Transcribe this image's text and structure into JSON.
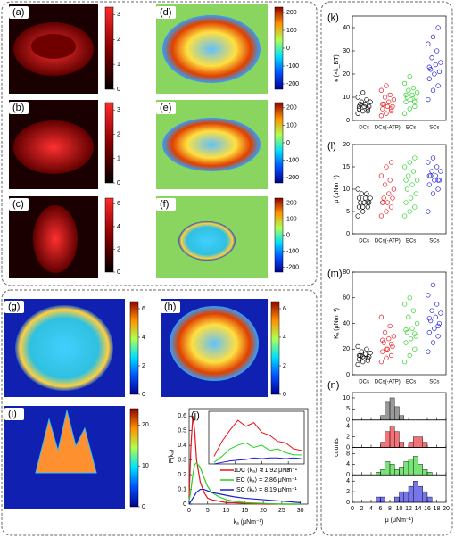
{
  "image_panels": [
    {
      "label": "(a)",
      "clim": [
        0,
        3.3
      ],
      "colorbar_ticks": [
        0,
        1,
        2,
        3
      ]
    },
    {
      "label": "(b)",
      "clim": [
        0,
        3.3
      ],
      "colorbar_ticks": [
        0,
        1,
        2,
        3
      ]
    },
    {
      "label": "(c)",
      "clim": [
        0,
        6.5
      ],
      "colorbar_ticks": [
        0,
        2,
        4,
        6
      ]
    },
    {
      "label": "(d)",
      "clim": [
        -230,
        230
      ],
      "colorbar_ticks": [
        -200,
        -100,
        0,
        100,
        200
      ]
    },
    {
      "label": "(e)",
      "clim": [
        -230,
        230
      ],
      "colorbar_ticks": [
        -200,
        -100,
        0,
        100,
        200
      ]
    },
    {
      "label": "(f)",
      "clim": [
        -230,
        230
      ],
      "colorbar_ticks": [
        -200,
        -100,
        0,
        100,
        200
      ]
    },
    {
      "label": "(g)",
      "clim": [
        0,
        6.5
      ],
      "colorbar_ticks": [
        0,
        2,
        4,
        6
      ]
    },
    {
      "label": "(h)",
      "clim": [
        0,
        6.5
      ],
      "colorbar_ticks": [
        0,
        2,
        4,
        6
      ]
    },
    {
      "label": "(i)",
      "clim": [
        0,
        24
      ],
      "colorbar_ticks": [
        0,
        10,
        20
      ]
    }
  ],
  "chart_data": [
    {
      "type": "line",
      "panel_label": "(j)",
      "x_label": "kₐ (μNm⁻¹)",
      "y_label": "P(kₐ)",
      "x": [
        0,
        0.5,
        1,
        1.5,
        2,
        3,
        4,
        5,
        6,
        8,
        10,
        12,
        15,
        20,
        25,
        30
      ],
      "series": [
        {
          "name": "DC ⟨kₐ⟩ = 1.92 μNm⁻¹",
          "color": "#e8141c",
          "values": [
            0.05,
            0.4,
            0.6,
            0.5,
            0.3,
            0.15,
            0.08,
            0.04,
            0.03,
            0.02,
            0.01,
            0.01,
            0.005,
            0,
            0,
            0
          ]
        },
        {
          "name": "EC ⟨kₐ⟩ = 2.86 μNm⁻¹",
          "color": "#22d11e",
          "values": [
            0.02,
            0.1,
            0.2,
            0.27,
            0.28,
            0.25,
            0.18,
            0.12,
            0.08,
            0.05,
            0.03,
            0.02,
            0.01,
            0.005,
            0,
            0
          ]
        },
        {
          "name": "SC ⟨kₐ⟩ = 8.19 μNm⁻¹",
          "color": "#1b1bd8",
          "values": [
            0,
            0.02,
            0.04,
            0.06,
            0.08,
            0.1,
            0.1,
            0.09,
            0.08,
            0.07,
            0.06,
            0.05,
            0.04,
            0.03,
            0.02,
            0.01
          ]
        }
      ],
      "xlim": [
        0,
        32
      ],
      "xticks": [
        0,
        5,
        10,
        15,
        20,
        25,
        30
      ],
      "ylim": [
        0,
        0.65
      ],
      "yticks": [
        0,
        0.1,
        0.2,
        0.3,
        0.4,
        0.5,
        0.6
      ],
      "inset": {
        "xlim": [
          0,
          3.6
        ],
        "xticks": [
          1,
          2,
          3
        ],
        "ylim": [
          0,
          0.7
        ],
        "x": [
          0.2,
          0.5,
          0.8,
          1.1,
          1.4,
          1.7,
          2.0,
          2.3,
          2.6,
          2.9,
          3.2,
          3.5
        ],
        "series": [
          {
            "color": "#e8141c",
            "values": [
              0.1,
              0.3,
              0.45,
              0.58,
              0.5,
              0.55,
              0.42,
              0.38,
              0.3,
              0.28,
              0.2,
              0.18
            ]
          },
          {
            "color": "#22d11e",
            "values": [
              0.02,
              0.1,
              0.2,
              0.25,
              0.28,
              0.22,
              0.25,
              0.18,
              0.2,
              0.15,
              0.12,
              0.12
            ]
          },
          {
            "color": "#1b1bd8",
            "values": [
              0.0,
              0.02,
              0.04,
              0.05,
              0.06,
              0.08,
              0.07,
              0.08,
              0.08,
              0.07,
              0.08,
              0.07
            ]
          }
        ]
      }
    },
    {
      "type": "scatter",
      "panel_label": "(k)",
      "y_label": "κ (×k_BT)",
      "categories": [
        "DCs",
        "DCs(-ATP)",
        "ECs",
        "SCs"
      ],
      "series": [
        {
          "color": "#000000",
          "values": [
            3,
            4,
            5,
            5,
            6,
            6,
            7,
            7,
            8,
            8,
            9,
            10,
            12,
            4,
            6
          ]
        },
        {
          "color": "#e8141c",
          "values": [
            2,
            3,
            4,
            5,
            6,
            6,
            7,
            8,
            9,
            10,
            11,
            13,
            15,
            5,
            7
          ]
        },
        {
          "color": "#22d11e",
          "values": [
            3,
            5,
            6,
            8,
            9,
            10,
            10,
            11,
            12,
            13,
            14,
            16,
            19,
            8,
            11
          ]
        },
        {
          "color": "#1b1bd8",
          "values": [
            9,
            13,
            15,
            18,
            20,
            21,
            22,
            24,
            25,
            27,
            30,
            33,
            36,
            40,
            23
          ]
        }
      ],
      "ylim": [
        0,
        45
      ],
      "yticks": [
        0,
        10,
        20,
        30,
        40
      ]
    },
    {
      "type": "scatter",
      "panel_label": "(l)",
      "y_label": "μ (μNm⁻¹)",
      "categories": [
        "DCs",
        "DCs(-ATP)",
        "ECs",
        "SCs"
      ],
      "series": [
        {
          "color": "#000000",
          "values": [
            4,
            5,
            6,
            6,
            7,
            7,
            7,
            8,
            8,
            9,
            9,
            10,
            6,
            7,
            8
          ]
        },
        {
          "color": "#e8141c",
          "values": [
            4,
            5,
            6,
            7,
            7,
            8,
            8,
            9,
            10,
            11,
            12,
            13,
            15,
            16,
            7
          ]
        },
        {
          "color": "#22d11e",
          "values": [
            4,
            5,
            6,
            7,
            8,
            9,
            10,
            11,
            12,
            13,
            14,
            15,
            16,
            17,
            12
          ]
        },
        {
          "color": "#1b1bd8",
          "values": [
            5,
            9,
            10,
            11,
            12,
            12,
            13,
            13,
            14,
            14,
            15,
            16,
            17,
            12,
            13
          ]
        }
      ],
      "ylim": [
        0,
        20
      ],
      "yticks": [
        0,
        5,
        10,
        15,
        20
      ]
    },
    {
      "type": "scatter",
      "panel_label": "(m)",
      "y_label": "Kₐ (μNm⁻¹)",
      "categories": [
        "DCs",
        "DCs(-ATP)",
        "ECs",
        "SCs"
      ],
      "series": [
        {
          "color": "#000000",
          "values": [
            8,
            10,
            11,
            12,
            13,
            14,
            15,
            16,
            17,
            18,
            20,
            22,
            14,
            13,
            15
          ]
        },
        {
          "color": "#e8141c",
          "values": [
            10,
            13,
            15,
            18,
            20,
            22,
            25,
            28,
            30,
            33,
            38,
            45,
            20,
            24,
            27
          ]
        },
        {
          "color": "#22d11e",
          "values": [
            10,
            15,
            20,
            25,
            28,
            30,
            33,
            36,
            40,
            45,
            50,
            55,
            60,
            32,
            35
          ]
        },
        {
          "color": "#1b1bd8",
          "values": [
            18,
            25,
            30,
            33,
            36,
            40,
            42,
            45,
            48,
            50,
            55,
            62,
            70,
            38,
            44
          ]
        }
      ],
      "ylim": [
        0,
        80
      ],
      "yticks": [
        0,
        20,
        40,
        60,
        80
      ]
    },
    {
      "type": "histogram",
      "panel_label": "(n)",
      "x_label": "μ (μNm⁻¹)",
      "y_label": "counts",
      "bins": [
        0,
        1,
        2,
        3,
        4,
        5,
        6,
        7,
        8,
        9,
        10,
        11,
        12,
        13,
        14,
        15,
        16,
        17,
        18,
        19,
        20
      ],
      "xlim": [
        0,
        20
      ],
      "xticks": [
        0,
        2,
        4,
        6,
        8,
        10,
        12,
        14,
        16,
        18,
        20
      ],
      "panels": [
        {
          "color": "#555555",
          "counts": [
            0,
            0,
            0,
            0,
            0,
            0,
            2,
            8,
            10,
            6,
            2,
            0,
            0,
            0,
            0,
            0,
            0,
            0,
            0,
            0
          ],
          "ylim": [
            0,
            12
          ],
          "yticks": [
            0,
            5,
            10
          ]
        },
        {
          "color": "#e8141c",
          "counts": [
            0,
            0,
            0,
            0,
            0,
            0,
            1,
            3,
            4,
            3,
            1,
            0,
            1,
            2,
            2,
            1,
            0,
            0,
            0,
            0
          ],
          "ylim": [
            0,
            5
          ],
          "yticks": [
            0,
            2,
            4
          ]
        },
        {
          "color": "#22d11e",
          "counts": [
            0,
            0,
            0,
            0,
            0,
            1,
            2,
            5,
            4,
            2,
            3,
            5,
            6,
            7,
            4,
            2,
            1,
            0,
            0,
            0
          ],
          "ylim": [
            0,
            10
          ],
          "yticks": [
            0,
            4,
            8
          ]
        },
        {
          "color": "#1b1bd8",
          "counts": [
            0,
            0,
            0,
            0,
            0,
            1,
            1,
            0,
            0,
            1,
            2,
            2,
            3,
            4,
            3,
            2,
            1,
            0,
            0,
            0
          ],
          "ylim": [
            0,
            5
          ],
          "yticks": [
            0,
            2,
            4
          ]
        }
      ]
    }
  ]
}
